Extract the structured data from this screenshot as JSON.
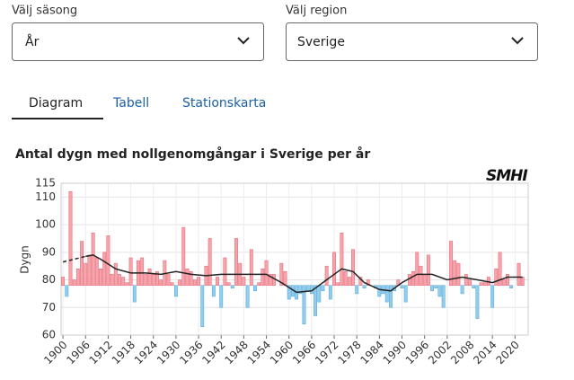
{
  "ui": {
    "season_label": "Välj säsong",
    "season_value": "År",
    "region_label": "Välj region",
    "region_value": "Sverige",
    "tabs": [
      "Diagram",
      "Tabell",
      "Stationskarta"
    ],
    "logo": "SMHI"
  },
  "chart_data": {
    "type": "bar",
    "title": "Antal dygn med nollgenomgångar i Sverige per år",
    "ylabel": "Dygn",
    "x": [
      1900,
      1901,
      1902,
      1903,
      1904,
      1905,
      1906,
      1907,
      1908,
      1909,
      1910,
      1911,
      1912,
      1913,
      1914,
      1915,
      1916,
      1917,
      1918,
      1919,
      1920,
      1921,
      1922,
      1923,
      1924,
      1925,
      1926,
      1927,
      1928,
      1929,
      1930,
      1931,
      1932,
      1933,
      1934,
      1935,
      1936,
      1937,
      1938,
      1939,
      1940,
      1941,
      1942,
      1943,
      1944,
      1945,
      1946,
      1947,
      1948,
      1949,
      1950,
      1951,
      1952,
      1953,
      1954,
      1955,
      1956,
      1957,
      1958,
      1959,
      1960,
      1961,
      1962,
      1963,
      1964,
      1965,
      1966,
      1967,
      1968,
      1969,
      1970,
      1971,
      1972,
      1973,
      1974,
      1975,
      1976,
      1977,
      1978,
      1979,
      1980,
      1981,
      1982,
      1983,
      1984,
      1985,
      1986,
      1987,
      1988,
      1989,
      1990,
      1991,
      1992,
      1993,
      1994,
      1995,
      1996,
      1997,
      1998,
      1999,
      2000,
      2001,
      2002,
      2003,
      2004,
      2005,
      2006,
      2007,
      2008,
      2009,
      2010,
      2011,
      2012,
      2013,
      2014,
      2015,
      2016,
      2017,
      2018,
      2019,
      2020,
      2021,
      2022
    ],
    "values": [
      81,
      74,
      112,
      80,
      84,
      94,
      86,
      89,
      97,
      88,
      84,
      90,
      96,
      82,
      86,
      82,
      81,
      79,
      88,
      72,
      87,
      88,
      82,
      84,
      82,
      83,
      80,
      87,
      82,
      79,
      74,
      80,
      99,
      84,
      83,
      80,
      81,
      63,
      85,
      95,
      74,
      81,
      70,
      88,
      79,
      77,
      95,
      86,
      81,
      70,
      91,
      76,
      79,
      84,
      87,
      82,
      82,
      78,
      86,
      83,
      73,
      74,
      73,
      75,
      64,
      76,
      75,
      67,
      72,
      76,
      85,
      73,
      90,
      79,
      97,
      83,
      81,
      91,
      75,
      81,
      77,
      80,
      78,
      77,
      74,
      75,
      72,
      70,
      76,
      80,
      77,
      72,
      82,
      83,
      90,
      85,
      82,
      89,
      76,
      77,
      74,
      70,
      78,
      94,
      87,
      86,
      75,
      82,
      80,
      77,
      66,
      79,
      79,
      81,
      70,
      84,
      90,
      80,
      82,
      77,
      78,
      86,
      81
    ],
    "baseline": 78,
    "color_above": "#f7a3ab",
    "stroke_above": "#e2606e",
    "color_below": "#92cdec",
    "stroke_below": "#4aa3d8",
    "lines": [
      {
        "style": "dashed",
        "color": "#222",
        "x": [
          1900,
          1903,
          1906
        ],
        "values": [
          86.5,
          87.5,
          88.5
        ]
      },
      {
        "style": "solid",
        "color": "#222",
        "x": [
          1906,
          1908,
          1910,
          1914,
          1918,
          1922,
          1926,
          1930,
          1934,
          1938,
          1942,
          1946,
          1950,
          1954,
          1958,
          1962,
          1966,
          1970,
          1974,
          1977,
          1980,
          1984,
          1987,
          1990,
          1994,
          1998,
          2002,
          2006,
          2010,
          2014,
          2018,
          2022
        ],
        "values": [
          88.5,
          89,
          87.5,
          84,
          82.5,
          82.5,
          82,
          83,
          82,
          81.5,
          82,
          82,
          82,
          82,
          79,
          75.5,
          76,
          80,
          84,
          83,
          79,
          76.5,
          76,
          79,
          82,
          82,
          80,
          81,
          80,
          79,
          81,
          81
        ]
      }
    ],
    "xlim": [
      1899.5,
      2023.5
    ],
    "ylim": [
      60,
      115
    ],
    "xticks": [
      1900,
      1906,
      1912,
      1918,
      1924,
      1930,
      1936,
      1942,
      1948,
      1954,
      1960,
      1966,
      1972,
      1978,
      1984,
      1990,
      1996,
      2002,
      2008,
      2014,
      2020
    ],
    "yticks": [
      60,
      70,
      80,
      90,
      100,
      110,
      115
    ],
    "grid": true
  }
}
